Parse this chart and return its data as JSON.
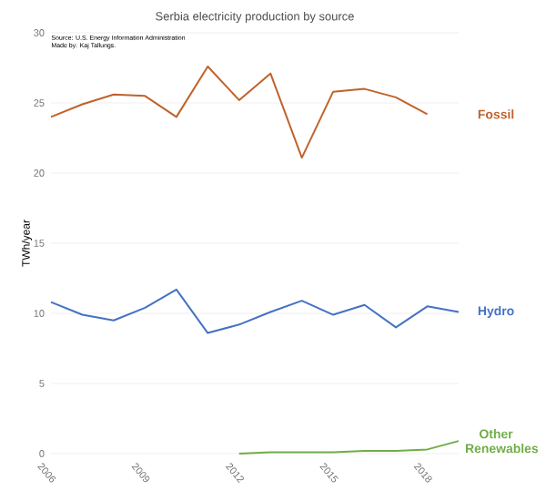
{
  "chart_data": {
    "type": "line",
    "title": "Serbia electricity production by source",
    "ylabel": "TWh/year",
    "annotations": [
      "Source: U.S. Energy Information Administration",
      "Made by: Kaj Tallungs."
    ],
    "x": [
      2006,
      2007,
      2008,
      2009,
      2010,
      2011,
      2012,
      2013,
      2014,
      2015,
      2016,
      2017,
      2018,
      2019
    ],
    "xlim": [
      2006,
      2019
    ],
    "xticks": [
      2006,
      2009,
      2012,
      2015,
      2018
    ],
    "ylim": [
      0,
      30
    ],
    "yticks": [
      0,
      5,
      10,
      15,
      20,
      25,
      30
    ],
    "grid": "y",
    "marker": "none",
    "line_style": "solid",
    "series": [
      {
        "name": "Fossil",
        "color": "#c0622a",
        "values": [
          24.0,
          24.9,
          25.6,
          25.5,
          24.0,
          27.6,
          25.2,
          27.1,
          21.1,
          25.8,
          26.0,
          25.4,
          24.2,
          null
        ]
      },
      {
        "name": "Hydro",
        "color": "#4472c4",
        "values": [
          10.8,
          9.9,
          9.5,
          10.4,
          11.7,
          8.6,
          9.2,
          10.1,
          10.9,
          9.9,
          10.6,
          9.0,
          10.5,
          10.1
        ]
      },
      {
        "name": "Other Renewables",
        "color": "#70ad47",
        "values": [
          null,
          null,
          null,
          null,
          null,
          null,
          0.0,
          0.1,
          0.1,
          0.1,
          0.2,
          0.2,
          0.3,
          0.9
        ]
      }
    ]
  }
}
